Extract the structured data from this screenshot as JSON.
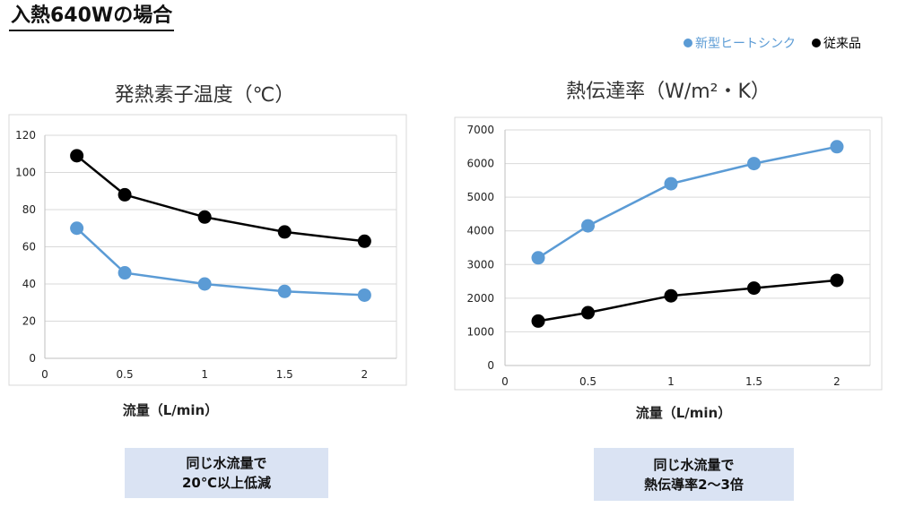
{
  "heading": "入熱640Wの場合",
  "legend": [
    {
      "label": "新型ヒートシンク",
      "color": "#5b9bd5"
    },
    {
      "label": "従来品",
      "color": "#000000"
    }
  ],
  "notes": [
    {
      "line1": "同じ水流量で",
      "line2": "20℃以上低減"
    },
    {
      "line1": "同じ水流量で",
      "line2": "熱伝導率2～3倍"
    }
  ],
  "chart_data": [
    {
      "type": "line",
      "title": "発熱素子温度（℃）",
      "xlabel": "流量（L/min）",
      "ylabel": "",
      "xlim": [
        0,
        2.2
      ],
      "ylim": [
        0,
        120
      ],
      "xticks": [
        0,
        0.5,
        1,
        1.5,
        2
      ],
      "xtick_labels": [
        "0",
        "0.5",
        "1",
        "1.5",
        "2"
      ],
      "yticks": [
        0,
        20,
        40,
        60,
        80,
        100,
        120
      ],
      "grid": true,
      "x": [
        0.2,
        0.5,
        1,
        1.5,
        2
      ],
      "series": [
        {
          "name": "新型ヒートシンク",
          "color": "#5b9bd5",
          "values": [
            70,
            46,
            40,
            36,
            34
          ]
        },
        {
          "name": "従来品",
          "color": "#000000",
          "values": [
            109,
            88,
            76,
            68,
            63
          ]
        }
      ]
    },
    {
      "type": "line",
      "title": "熱伝達率（W/m²・K）",
      "xlabel": "流量（L/min）",
      "ylabel": "",
      "xlim": [
        0,
        2.2
      ],
      "ylim": [
        0,
        7000
      ],
      "xticks": [
        0,
        0.5,
        1,
        1.5,
        2
      ],
      "xtick_labels": [
        "0",
        "0.5",
        "1",
        "1.5",
        "2"
      ],
      "yticks": [
        0,
        1000,
        2000,
        3000,
        4000,
        5000,
        6000,
        7000
      ],
      "grid": true,
      "x": [
        0.2,
        0.5,
        1,
        1.5,
        2
      ],
      "series": [
        {
          "name": "新型ヒートシンク",
          "color": "#5b9bd5",
          "values": [
            3200,
            4150,
            5400,
            6000,
            6500
          ]
        },
        {
          "name": "従来品",
          "color": "#000000",
          "values": [
            1320,
            1570,
            2070,
            2300,
            2530
          ]
        }
      ]
    }
  ]
}
